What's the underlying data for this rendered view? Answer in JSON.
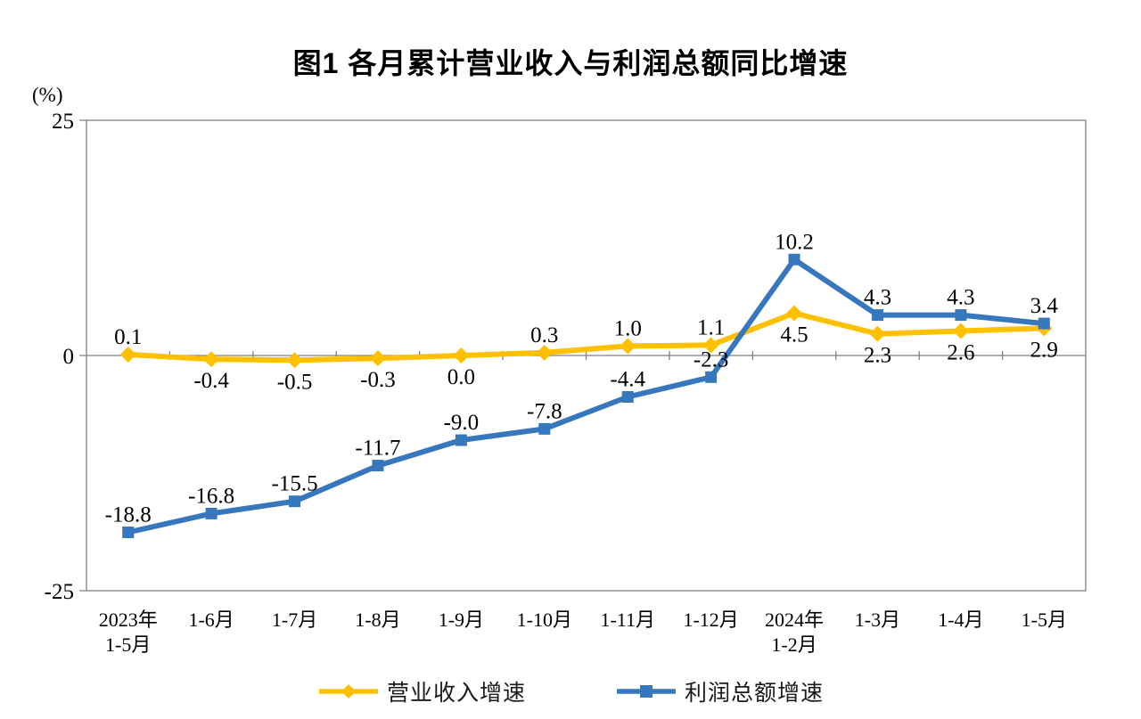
{
  "chart_data": {
    "type": "line",
    "title": "图1 各月累计营业收入与利润总额同比增速",
    "unit_label": "(%)",
    "y_axis": {
      "ticks": [
        25,
        0,
        -25
      ],
      "min": -25,
      "max": 25
    },
    "grid": "off",
    "legend_position": "bottom",
    "categories": [
      [
        "2023年",
        "1-5月"
      ],
      [
        "1-6月"
      ],
      [
        "1-7月"
      ],
      [
        "1-8月"
      ],
      [
        "1-9月"
      ],
      [
        "1-10月"
      ],
      [
        "1-11月"
      ],
      [
        "1-12月"
      ],
      [
        "2024年",
        "1-2月"
      ],
      [
        "1-3月"
      ],
      [
        "1-4月"
      ],
      [
        "1-5月"
      ]
    ],
    "series": [
      {
        "name": "营业收入增速",
        "color": "#FFC000",
        "marker": "diamond",
        "values": [
          0.1,
          -0.4,
          -0.5,
          -0.3,
          0.0,
          0.3,
          1.0,
          1.1,
          4.5,
          2.3,
          2.6,
          2.9
        ],
        "labels": [
          "0.1",
          "-0.4",
          "-0.5",
          "-0.3",
          "0.0",
          "0.3",
          "1.0",
          "1.1",
          "4.5",
          "2.3",
          "2.6",
          "2.9"
        ],
        "label_side": [
          "above",
          "below",
          "below",
          "below",
          "below",
          "above",
          "above",
          "above",
          "below",
          "below",
          "below",
          "below"
        ]
      },
      {
        "name": "利润总额增速",
        "color": "#3777BD",
        "marker": "square",
        "values": [
          -18.8,
          -16.8,
          -15.5,
          -11.7,
          -9.0,
          -7.8,
          -4.4,
          -2.3,
          10.2,
          4.3,
          4.3,
          3.4
        ],
        "labels": [
          "-18.8",
          "-16.8",
          "-15.5",
          "-11.7",
          "-9.0",
          "-7.8",
          "-4.4",
          "-2.3",
          "10.2",
          "4.3",
          "4.3",
          "3.4"
        ],
        "label_side": [
          "above",
          "above",
          "above",
          "above",
          "above",
          "above",
          "above",
          "above",
          "above",
          "above",
          "above",
          "above"
        ]
      }
    ],
    "colors": {
      "frame": "#808080",
      "text": "#000000"
    }
  }
}
